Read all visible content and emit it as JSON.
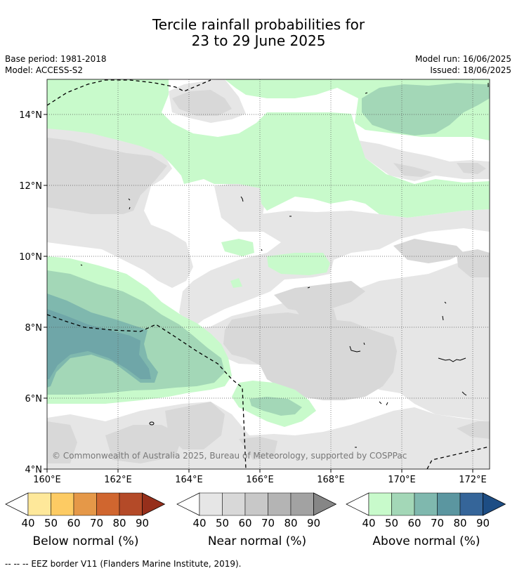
{
  "title": {
    "line1": "Tercile rainfall probabilities for",
    "line2": "23 to 29 June 2025"
  },
  "meta": {
    "base_period": "Base period: 1981-2018",
    "model": "Model: ACCESS-S2",
    "model_run": "Model run: 16/06/2025",
    "issued": "Issued: 18/06/2025"
  },
  "map": {
    "lat_labels": [
      "14°N",
      "12°N",
      "10°N",
      "8°N",
      "6°N",
      "4°N"
    ],
    "lon_labels": [
      "160°E",
      "162°E",
      "164°E",
      "166°E",
      "168°E",
      "170°E",
      "172°E"
    ],
    "copyright": "© Commonwealth of Australia 2025, Bureau of Meteorology, supported by COSPPac"
  },
  "colorbars": [
    {
      "label": "Below normal (%)",
      "ticks": [
        "40",
        "50",
        "60",
        "70",
        "80",
        "90"
      ],
      "colors": [
        "#fee89a",
        "#fdcb63",
        "#e59848",
        "#d0662f",
        "#b44a28",
        "#962f1b"
      ]
    },
    {
      "label": "Near normal (%)",
      "ticks": [
        "40",
        "50",
        "60",
        "70",
        "80",
        "90"
      ],
      "colors": [
        "#e6e6e6",
        "#d8d8d8",
        "#c8c8c8",
        "#b4b4b4",
        "#a2a2a2",
        "#868686"
      ]
    },
    {
      "label": "Above normal (%)",
      "ticks": [
        "40",
        "50",
        "60",
        "70",
        "80",
        "90"
      ],
      "colors": [
        "#c8facb",
        "#a3d7b7",
        "#7fb8ae",
        "#5b96a0",
        "#356599",
        "#1d4d84"
      ]
    }
  ],
  "footnote": "--  --  -- EEZ border V11 (Flanders Marine Institute, 2019)."
}
